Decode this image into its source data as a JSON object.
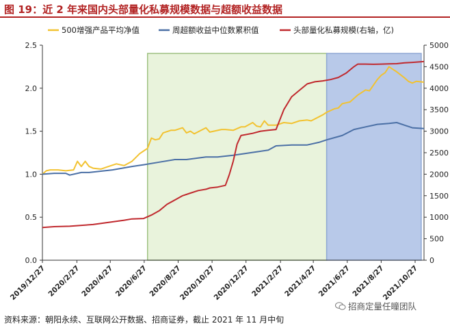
{
  "header": {
    "title": "图 19：近 2 年来国内头部量化私募规模数据与超额收益数据"
  },
  "footer": {
    "source": "资料来源：朝阳永续、互联网公开数据、招商证券，截止 2021 年 11 月中旬"
  },
  "watermark": {
    "text": "招商定量任瞳团队",
    "icon": "wechat-icon"
  },
  "chart_data": {
    "type": "line",
    "x_ticks": [
      "2019/12/27",
      "2020/2/27",
      "2020/4/27",
      "2020/6/27",
      "2020/8/27",
      "2020/10/27",
      "2020/12/27",
      "2021/2/27",
      "2021/4/27",
      "2021/6/27",
      "2021/8/27",
      "2021/10/27"
    ],
    "x_range": [
      "2019/12/27",
      "2021/11/12"
    ],
    "ylim": [
      0,
      2.5
    ],
    "y_ticks": [
      "0.0",
      "0.5",
      "1.0",
      "1.5",
      "2.0",
      "2.5"
    ],
    "y2lim": [
      0,
      5000
    ],
    "y2_ticks": [
      "0",
      "500",
      "1000",
      "1500",
      "2000",
      "2500",
      "3000",
      "3500",
      "4000",
      "4500",
      "5000"
    ],
    "legend_position": "top",
    "grid": false,
    "shaded_regions": [
      {
        "from": "2020/7/3",
        "to": "2021/5/21",
        "color": "#e9f3dc",
        "border": "#9dc080"
      },
      {
        "from": "2021/5/21",
        "to": "2021/11/7",
        "color": "#b8c9e9",
        "border": "#8fa7d4"
      }
    ],
    "series": [
      {
        "name": "500增强产品平均净值",
        "axis": "left",
        "color": "#f2c230",
        "points": [
          [
            "2019/12/27",
            1.0
          ],
          [
            "2020/1/3",
            1.04
          ],
          [
            "2020/1/10",
            1.05
          ],
          [
            "2020/1/24",
            1.05
          ],
          [
            "2020/2/7",
            1.04
          ],
          [
            "2020/2/21",
            1.05
          ],
          [
            "2020/2/28",
            1.15
          ],
          [
            "2020/3/6",
            1.09
          ],
          [
            "2020/3/13",
            1.15
          ],
          [
            "2020/3/20",
            1.09
          ],
          [
            "2020/3/27",
            1.07
          ],
          [
            "2020/4/10",
            1.06
          ],
          [
            "2020/4/24",
            1.09
          ],
          [
            "2020/5/8",
            1.12
          ],
          [
            "2020/5/22",
            1.1
          ],
          [
            "2020/6/5",
            1.15
          ],
          [
            "2020/6/19",
            1.24
          ],
          [
            "2020/6/26",
            1.27
          ],
          [
            "2020/7/3",
            1.3
          ],
          [
            "2020/7/10",
            1.42
          ],
          [
            "2020/7/17",
            1.4
          ],
          [
            "2020/7/24",
            1.41
          ],
          [
            "2020/7/31",
            1.48
          ],
          [
            "2020/8/14",
            1.51
          ],
          [
            "2020/8/21",
            1.51
          ],
          [
            "2020/9/4",
            1.54
          ],
          [
            "2020/9/11",
            1.48
          ],
          [
            "2020/9/18",
            1.5
          ],
          [
            "2020/9/25",
            1.47
          ],
          [
            "2020/10/16",
            1.54
          ],
          [
            "2020/10/23",
            1.49
          ],
          [
            "2020/10/30",
            1.5
          ],
          [
            "2020/11/13",
            1.52
          ],
          [
            "2020/11/20",
            1.52
          ],
          [
            "2020/12/4",
            1.51
          ],
          [
            "2020/12/18",
            1.55
          ],
          [
            "2020/12/25",
            1.55
          ],
          [
            "2021/1/8",
            1.6
          ],
          [
            "2021/1/15",
            1.56
          ],
          [
            "2021/1/22",
            1.55
          ],
          [
            "2021/1/29",
            1.62
          ],
          [
            "2021/2/5",
            1.57
          ],
          [
            "2021/2/19",
            1.57
          ],
          [
            "2021/3/5",
            1.6
          ],
          [
            "2021/3/19",
            1.59
          ],
          [
            "2021/4/2",
            1.62
          ],
          [
            "2021/4/16",
            1.63
          ],
          [
            "2021/4/23",
            1.62
          ],
          [
            "2021/5/14",
            1.69
          ],
          [
            "2021/5/21",
            1.72
          ],
          [
            "2021/6/4",
            1.76
          ],
          [
            "2021/6/11",
            1.77
          ],
          [
            "2021/6/18",
            1.82
          ],
          [
            "2021/7/2",
            1.84
          ],
          [
            "2021/7/16",
            1.92
          ],
          [
            "2021/7/30",
            1.98
          ],
          [
            "2021/8/6",
            1.97
          ],
          [
            "2021/8/20",
            2.1
          ],
          [
            "2021/8/27",
            2.15
          ],
          [
            "2021/9/3",
            2.18
          ],
          [
            "2021/9/10",
            2.25
          ],
          [
            "2021/9/17",
            2.22
          ],
          [
            "2021/9/24",
            2.19
          ],
          [
            "2021/10/8",
            2.12
          ],
          [
            "2021/10/15",
            2.08
          ],
          [
            "2021/10/22",
            2.06
          ],
          [
            "2021/10/29",
            2.08
          ],
          [
            "2021/11/12",
            2.07
          ]
        ]
      },
      {
        "name": "周超额收益中位数累积值",
        "axis": "left",
        "color": "#4a6fa5",
        "points": [
          [
            "2019/12/27",
            1.0
          ],
          [
            "2020/1/17",
            1.01
          ],
          [
            "2020/2/7",
            1.01
          ],
          [
            "2020/2/14",
            0.99
          ],
          [
            "2020/3/6",
            1.02
          ],
          [
            "2020/3/20",
            1.02
          ],
          [
            "2020/4/3",
            1.03
          ],
          [
            "2020/5/1",
            1.05
          ],
          [
            "2020/6/5",
            1.09
          ],
          [
            "2020/6/26",
            1.11
          ],
          [
            "2020/7/24",
            1.14
          ],
          [
            "2020/8/21",
            1.17
          ],
          [
            "2020/9/11",
            1.17
          ],
          [
            "2020/10/16",
            1.2
          ],
          [
            "2020/11/6",
            1.2
          ],
          [
            "2020/12/4",
            1.22
          ],
          [
            "2020/12/25",
            1.24
          ],
          [
            "2021/1/15",
            1.26
          ],
          [
            "2021/2/5",
            1.28
          ],
          [
            "2021/2/19",
            1.33
          ],
          [
            "2021/3/19",
            1.34
          ],
          [
            "2021/4/16",
            1.34
          ],
          [
            "2021/5/7",
            1.37
          ],
          [
            "2021/5/21",
            1.4
          ],
          [
            "2021/6/18",
            1.45
          ],
          [
            "2021/7/9",
            1.52
          ],
          [
            "2021/7/30",
            1.55
          ],
          [
            "2021/8/20",
            1.58
          ],
          [
            "2021/9/10",
            1.59
          ],
          [
            "2021/9/24",
            1.6
          ],
          [
            "2021/10/8",
            1.57
          ],
          [
            "2021/10/22",
            1.54
          ],
          [
            "2021/11/12",
            1.53
          ]
        ]
      },
      {
        "name": "头部量化私募规模(右轴，亿)",
        "axis": "right",
        "color": "#c0282d",
        "points": [
          [
            "2019/12/27",
            760
          ],
          [
            "2020/1/17",
            780
          ],
          [
            "2020/2/14",
            790
          ],
          [
            "2020/3/6",
            810
          ],
          [
            "2020/3/27",
            830
          ],
          [
            "2020/4/24",
            880
          ],
          [
            "2020/5/22",
            930
          ],
          [
            "2020/6/5",
            960
          ],
          [
            "2020/6/26",
            970
          ],
          [
            "2020/7/10",
            1050
          ],
          [
            "2020/7/24",
            1150
          ],
          [
            "2020/8/7",
            1300
          ],
          [
            "2020/8/21",
            1400
          ],
          [
            "2020/9/4",
            1500
          ],
          [
            "2020/9/18",
            1560
          ],
          [
            "2020/10/2",
            1620
          ],
          [
            "2020/10/16",
            1650
          ],
          [
            "2020/10/23",
            1680
          ],
          [
            "2020/11/6",
            1700
          ],
          [
            "2020/11/20",
            1740
          ],
          [
            "2020/11/27",
            1990
          ],
          [
            "2020/12/4",
            2300
          ],
          [
            "2020/12/11",
            2700
          ],
          [
            "2020/12/18",
            2900
          ],
          [
            "2021/1/8",
            2950
          ],
          [
            "2021/1/22",
            3000
          ],
          [
            "2021/2/5",
            3020
          ],
          [
            "2021/2/19",
            3040
          ],
          [
            "2021/3/5",
            3500
          ],
          [
            "2021/3/19",
            3800
          ],
          [
            "2021/4/2",
            3950
          ],
          [
            "2021/4/16",
            4100
          ],
          [
            "2021/4/30",
            4150
          ],
          [
            "2021/5/14",
            4170
          ],
          [
            "2021/5/28",
            4200
          ],
          [
            "2021/6/11",
            4250
          ],
          [
            "2021/6/25",
            4350
          ],
          [
            "2021/7/9",
            4500
          ],
          [
            "2021/7/16",
            4560
          ],
          [
            "2021/7/30",
            4560
          ],
          [
            "2021/8/13",
            4555
          ],
          [
            "2021/8/27",
            4560
          ],
          [
            "2021/9/10",
            4565
          ],
          [
            "2021/9/24",
            4570
          ],
          [
            "2021/10/8",
            4590
          ],
          [
            "2021/10/22",
            4600
          ],
          [
            "2021/11/12",
            4620
          ]
        ]
      }
    ]
  }
}
